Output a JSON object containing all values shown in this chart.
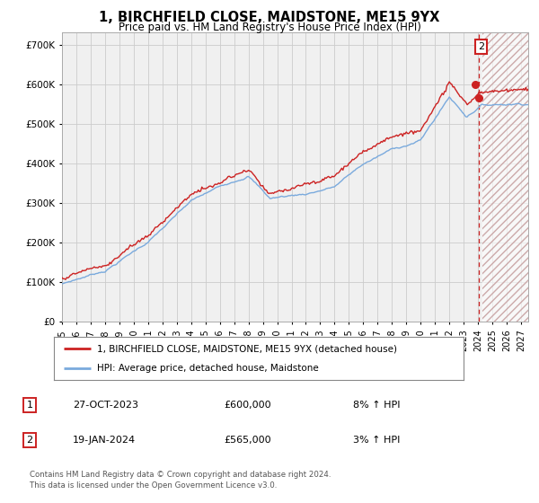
{
  "title": "1, BIRCHFIELD CLOSE, MAIDSTONE, ME15 9YX",
  "subtitle": "Price paid vs. HM Land Registry's House Price Index (HPI)",
  "ylim": [
    0,
    730000
  ],
  "xlim_start": 1995.0,
  "xlim_end": 2027.5,
  "hpi_color": "#7aaadd",
  "price_color": "#cc2222",
  "sale1_year": 2023.82,
  "sale1_price": 600000,
  "sale1_hpi_str": "8% ↑ HPI",
  "sale1_date": "27-OCT-2023",
  "sale2_year": 2024.05,
  "sale2_price": 565000,
  "sale2_hpi_str": "3% ↑ HPI",
  "sale2_date": "19-JAN-2024",
  "future_start": 2024.33,
  "legend1": "1, BIRCHFIELD CLOSE, MAIDSTONE, ME15 9YX (detached house)",
  "legend2": "HPI: Average price, detached house, Maidstone",
  "footnote1": "Contains HM Land Registry data © Crown copyright and database right 2024.",
  "footnote2": "This data is licensed under the Open Government Licence v3.0.",
  "grid_color": "#cccccc",
  "hatch_color": "#e8c8c8",
  "plot_bg": "#f0f0f0"
}
